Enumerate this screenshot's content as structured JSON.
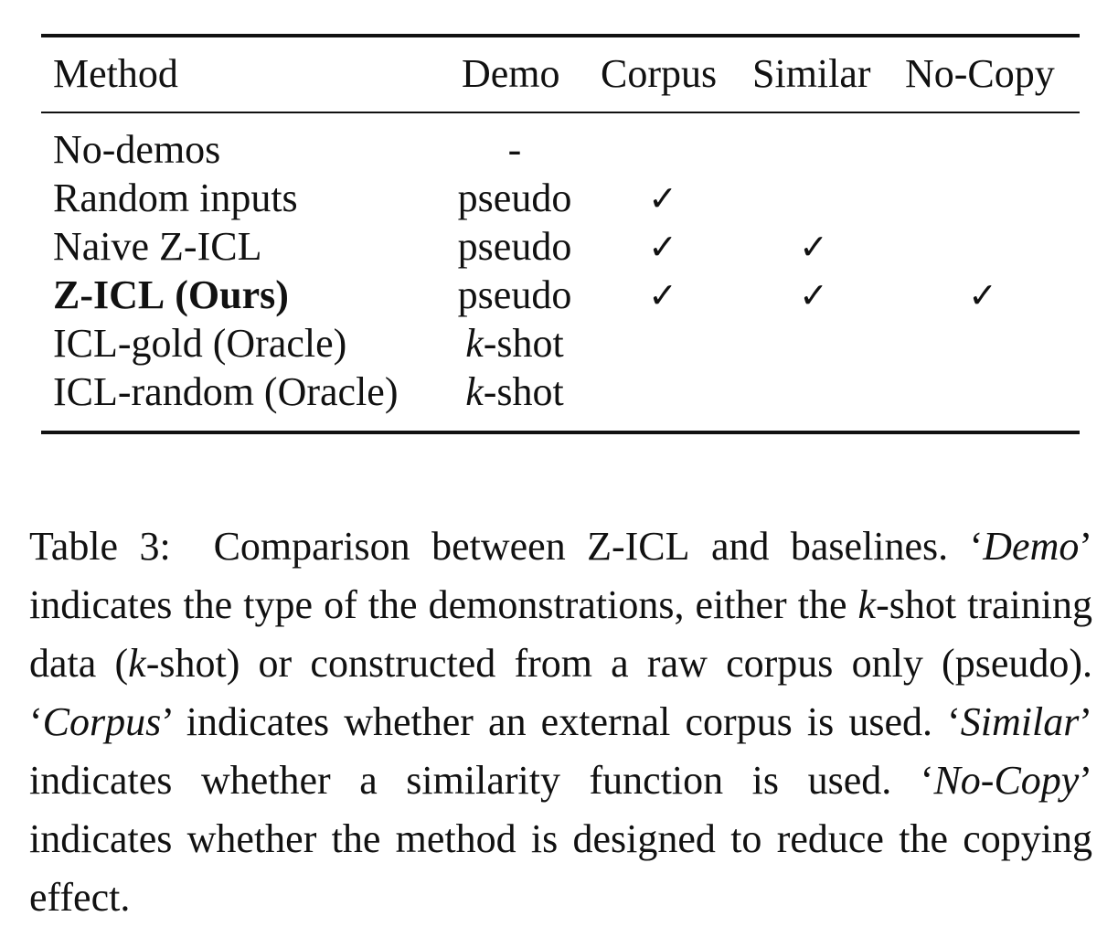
{
  "table": {
    "headers": {
      "method": "Method",
      "demo": "Demo",
      "corpus": "Corpus",
      "similar": "Similar",
      "nocopy": "No-Copy"
    },
    "rows": [
      {
        "method": "No-demos",
        "demo": "-",
        "corpus": false,
        "similar": false,
        "nocopy": false
      },
      {
        "method": "Random inputs",
        "demo": "pseudo",
        "corpus": true,
        "similar": false,
        "nocopy": false
      },
      {
        "method_prefix": "Naive Z-",
        "method_sc": "ICL",
        "demo": "pseudo",
        "corpus": true,
        "similar": true,
        "nocopy": false
      },
      {
        "method_prefix": "Z-",
        "method_sc": "ICL",
        "method_suffix": " (Ours)",
        "demo": "pseudo",
        "corpus": true,
        "similar": true,
        "nocopy": true
      },
      {
        "method": "ICL-gold (Oracle)",
        "demo_k": "k",
        "demo_rest": "-shot",
        "corpus": false,
        "similar": false,
        "nocopy": false
      },
      {
        "method": "ICL-random (Oracle)",
        "demo_k": "k",
        "demo_rest": "-shot",
        "corpus": false,
        "similar": false,
        "nocopy": false
      }
    ],
    "check_glyph": "✓"
  },
  "caption": {
    "label": "Table 3:",
    "p1": "Comparison between Z-",
    "p1_sc": "ICL",
    "p2": " and baselines. ‘",
    "demo_term": "Demo",
    "p3": "’ indicates the type of the demonstrations, either the ",
    "k1": "k",
    "p4": "-shot training data (",
    "k2": "k",
    "p5": "-shot) or constructed from a raw corpus only (pseudo). ‘",
    "corpus_term": "Corpus",
    "p6": "’ indicates whether an external corpus is used. ‘",
    "similar_term": "Similar",
    "p7": "’ indicates whether a similarity function is used. ‘",
    "nocopy_term": "No-Copy",
    "p8": "’ indicates whether the method is designed to reduce the copying effect."
  }
}
